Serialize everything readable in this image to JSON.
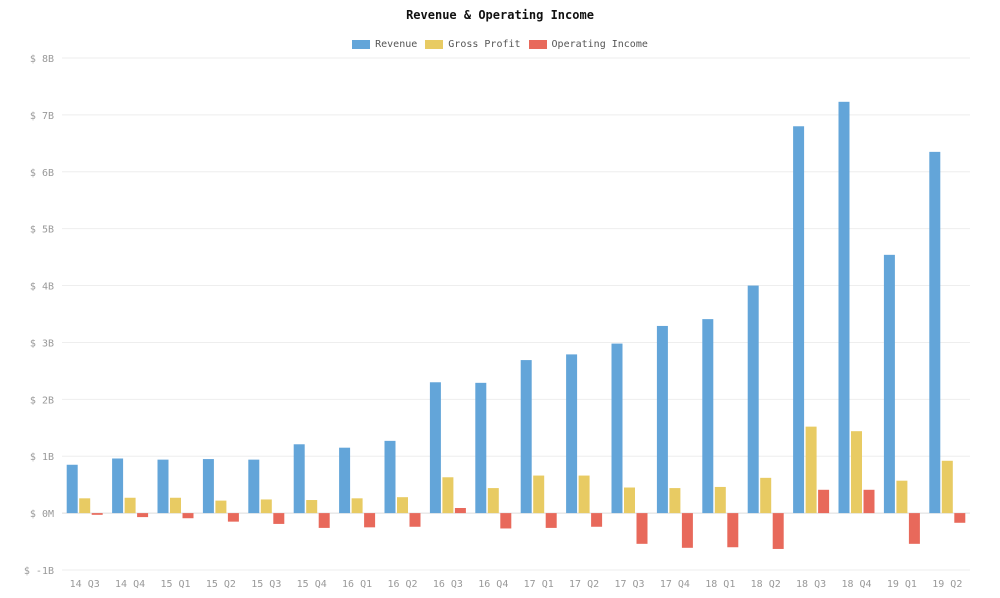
{
  "chart_data": {
    "type": "bar",
    "title": "Revenue & Operating Income",
    "xlabel": "",
    "ylabel": "",
    "categories": [
      "14 Q3",
      "14 Q4",
      "15 Q1",
      "15 Q2",
      "15 Q3",
      "15 Q4",
      "16 Q1",
      "16 Q2",
      "16 Q3",
      "16 Q4",
      "17 Q1",
      "17 Q2",
      "17 Q3",
      "17 Q4",
      "18 Q1",
      "18 Q2",
      "18 Q3",
      "18 Q4",
      "19 Q1",
      "19 Q2"
    ],
    "series": [
      {
        "name": "Revenue",
        "color": "#63a5d9",
        "values": [
          0.85,
          0.96,
          0.94,
          0.95,
          0.94,
          1.21,
          1.15,
          1.27,
          2.3,
          2.29,
          2.69,
          2.79,
          2.98,
          3.29,
          3.41,
          4.0,
          6.8,
          7.23,
          4.54,
          6.35
        ]
      },
      {
        "name": "Gross Profit",
        "color": "#e8cb63",
        "values": [
          0.26,
          0.27,
          0.27,
          0.22,
          0.24,
          0.23,
          0.26,
          0.28,
          0.63,
          0.44,
          0.66,
          0.66,
          0.45,
          0.44,
          0.46,
          0.62,
          1.52,
          1.44,
          0.57,
          0.92
        ]
      },
      {
        "name": "Operating Income",
        "color": "#e8695b",
        "values": [
          -0.03,
          -0.07,
          -0.09,
          -0.15,
          -0.19,
          -0.26,
          -0.25,
          -0.24,
          0.09,
          -0.27,
          -0.26,
          -0.24,
          -0.54,
          -0.61,
          -0.6,
          -0.63,
          0.41,
          0.41,
          -0.54,
          -0.17
        ]
      }
    ],
    "ylim": [
      -1,
      8
    ],
    "yticks": [
      {
        "value": -1,
        "label": "$ -1B"
      },
      {
        "value": 0,
        "label": "$ 0M"
      },
      {
        "value": 1,
        "label": "$ 1B"
      },
      {
        "value": 2,
        "label": "$ 2B"
      },
      {
        "value": 3,
        "label": "$ 3B"
      },
      {
        "value": 4,
        "label": "$ 4B"
      },
      {
        "value": 5,
        "label": "$ 5B"
      },
      {
        "value": 6,
        "label": "$ 6B"
      },
      {
        "value": 7,
        "label": "$ 7B"
      },
      {
        "value": 8,
        "label": "$ 8B"
      }
    ],
    "grid": true,
    "legend_position": "top-center"
  }
}
